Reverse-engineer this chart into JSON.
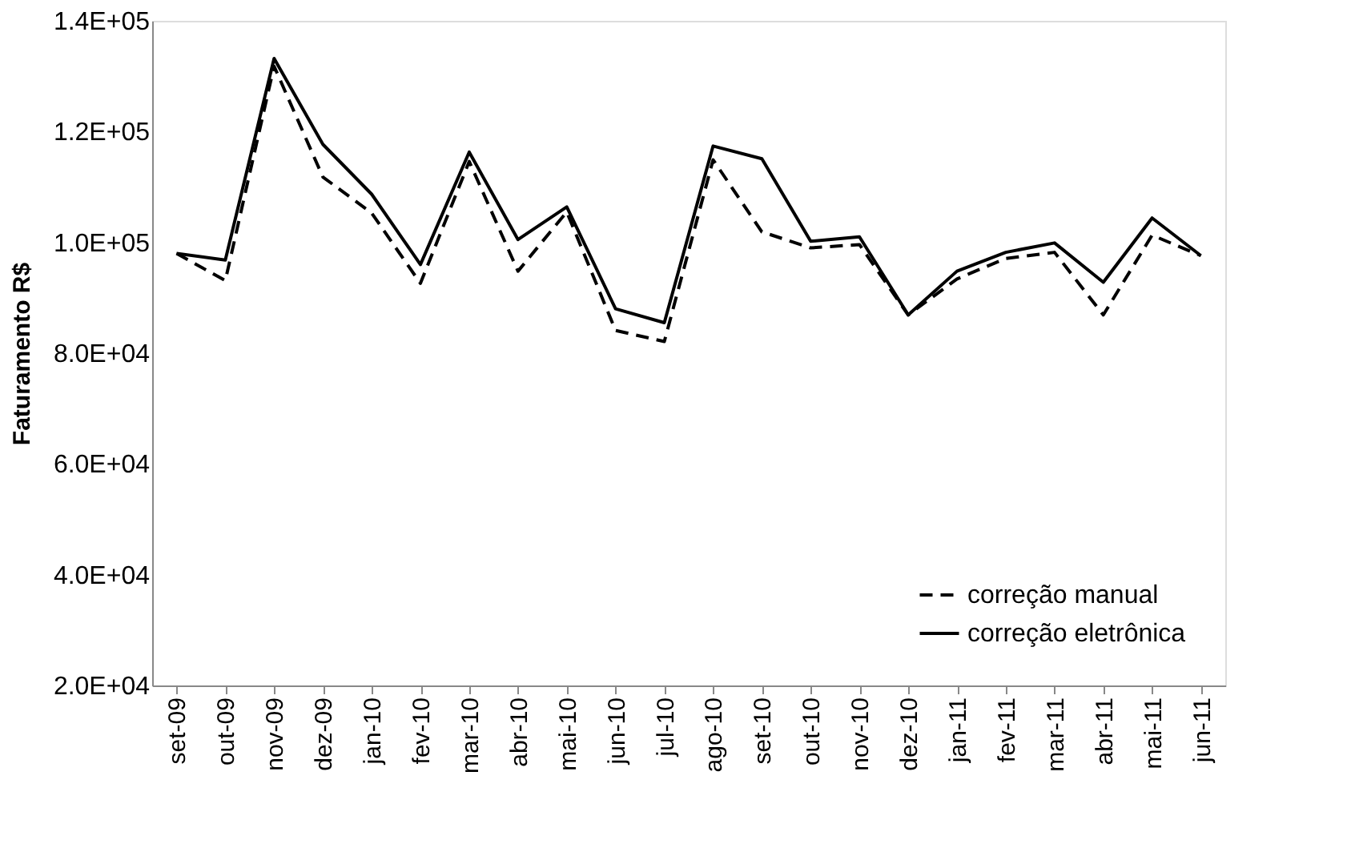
{
  "chart_data": {
    "type": "line",
    "ylabel": "Faturamento R$",
    "categories": [
      "set-09",
      "out-09",
      "nov-09",
      "dez-09",
      "jan-10",
      "fev-10",
      "mar-10",
      "abr-10",
      "mai-10",
      "jun-10",
      "jul-10",
      "ago-10",
      "set-10",
      "out-10",
      "nov-10",
      "dez-10",
      "jan-11",
      "fev-11",
      "mar-11",
      "abr-11",
      "mai-11",
      "jun-11"
    ],
    "series": [
      {
        "name": "correção manual",
        "color": "#000000",
        "line_style": "dashed",
        "values": [
          98000,
          93100,
          131800,
          111800,
          105300,
          92600,
          114600,
          94800,
          105500,
          84100,
          82100,
          114900,
          101900,
          99000,
          99600,
          86900,
          93400,
          97100,
          98200,
          86900,
          101300,
          97600
        ]
      },
      {
        "name": "correção eletrônica",
        "color": "#000000",
        "line_style": "solid",
        "values": [
          98000,
          96800,
          133200,
          117700,
          108700,
          96000,
          116300,
          100500,
          106400,
          88000,
          85500,
          117400,
          115100,
          100200,
          101000,
          86900,
          94800,
          98200,
          99900,
          92800,
          104400,
          97600
        ]
      }
    ],
    "ylim": [
      20000,
      140000
    ],
    "yticks": [
      {
        "value": 20000,
        "label": "2.0E+04"
      },
      {
        "value": 40000,
        "label": "4.0E+04"
      },
      {
        "value": 60000,
        "label": "6.0E+04"
      },
      {
        "value": 80000,
        "label": "8.0E+04"
      },
      {
        "value": 100000,
        "label": "1.0E+05"
      },
      {
        "value": 120000,
        "label": "1.2E+05"
      },
      {
        "value": 140000,
        "label": "1.4E+05"
      }
    ],
    "grid": false,
    "legend": "bottom right",
    "marker": "none"
  }
}
